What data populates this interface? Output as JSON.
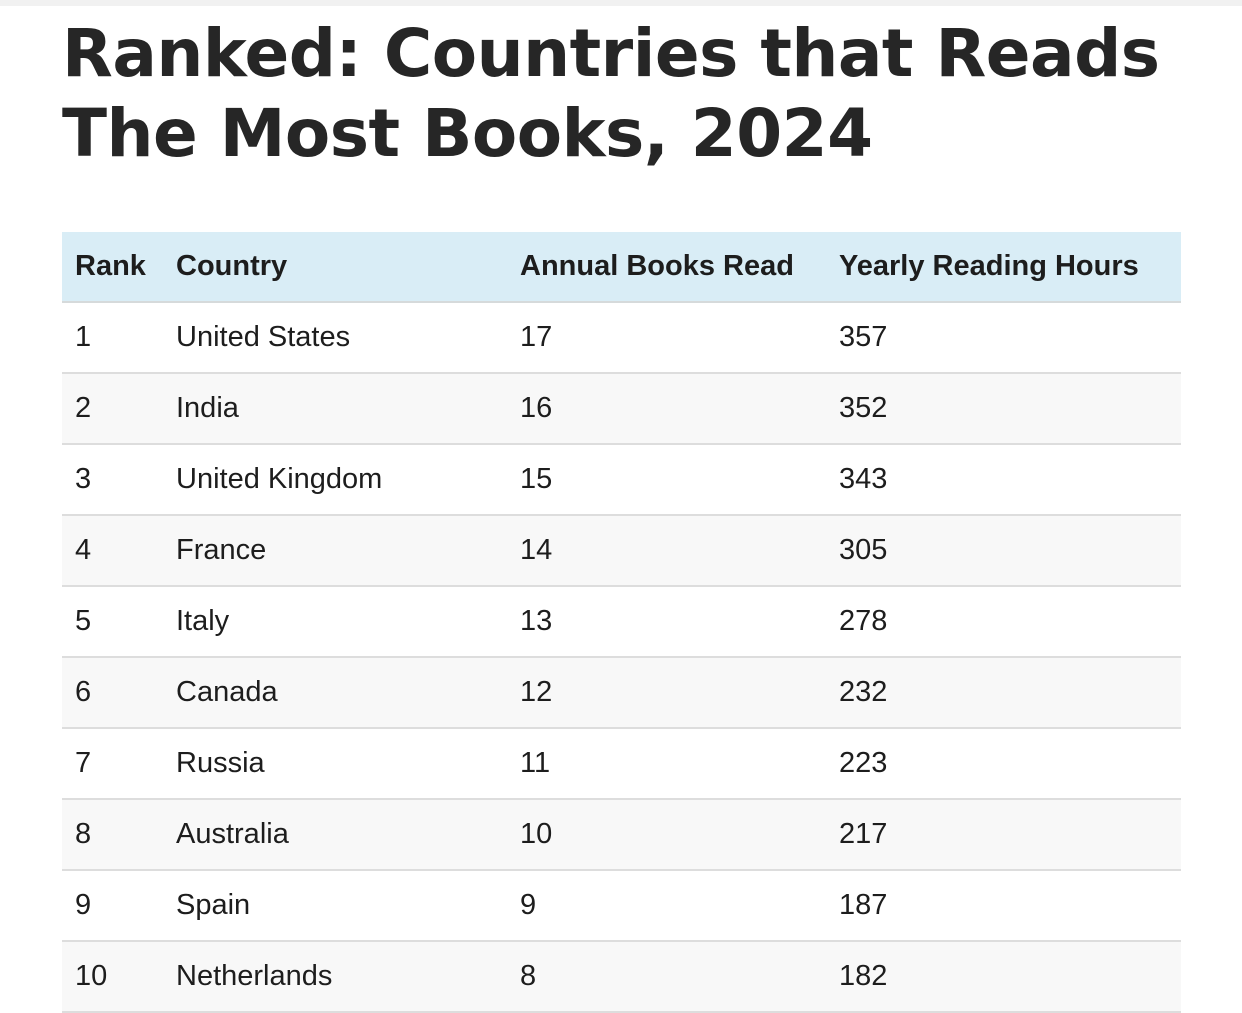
{
  "title": "Ranked: Countries that Reads The Most Books, 2024",
  "table": {
    "headers": {
      "rank": "Rank",
      "country": "Country",
      "books": "Annual Books Read",
      "hours": "Yearly Reading Hours"
    },
    "rows": [
      {
        "rank": "1",
        "country": "United States",
        "books": "17",
        "hours": "357"
      },
      {
        "rank": "2",
        "country": "India",
        "books": "16",
        "hours": "352"
      },
      {
        "rank": "3",
        "country": "United Kingdom",
        "books": "15",
        "hours": "343"
      },
      {
        "rank": "4",
        "country": "France",
        "books": "14",
        "hours": "305"
      },
      {
        "rank": "5",
        "country": "Italy",
        "books": "13",
        "hours": "278"
      },
      {
        "rank": "6",
        "country": "Canada",
        "books": "12",
        "hours": "232"
      },
      {
        "rank": "7",
        "country": "Russia",
        "books": "11",
        "hours": "223"
      },
      {
        "rank": "8",
        "country": "Australia",
        "books": "10",
        "hours": "217"
      },
      {
        "rank": "9",
        "country": "Spain",
        "books": "9",
        "hours": "187"
      },
      {
        "rank": "10",
        "country": "Netherlands",
        "books": "8",
        "hours": "182"
      }
    ]
  },
  "colors": {
    "header_background": "#d9edf6",
    "row_stripe": "#f8f8f8",
    "text": "#1d1d1d"
  }
}
